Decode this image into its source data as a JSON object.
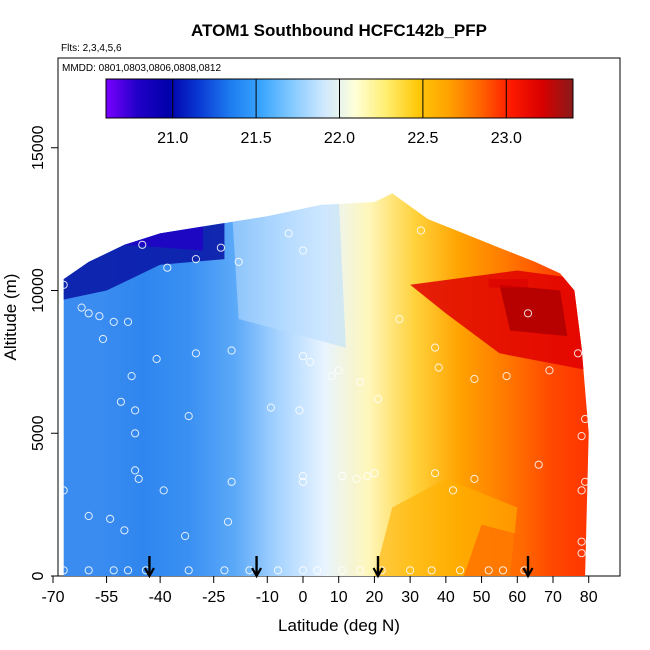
{
  "chart_data": {
    "type": "heatmap",
    "title": "ATOM1 Southbound HCFC142b_PFP",
    "flights_label": "Flts: 2,3,4,5,6",
    "dates_label": "MMDD: 0801,0803,0806,0808,0812",
    "xlabel": "Latitude (deg N)",
    "ylabel": "Altitude (m)",
    "xlim": [
      -70,
      85
    ],
    "ylim": [
      0,
      18000
    ],
    "x_ticks": [
      -70,
      -55,
      -40,
      -25,
      -10,
      0,
      10,
      20,
      30,
      40,
      50,
      60,
      70,
      80
    ],
    "y_ticks": [
      0,
      5000,
      10000,
      15000
    ],
    "colorbar": {
      "range": [
        20.6,
        23.4
      ],
      "ticks": [
        21.0,
        21.5,
        22.0,
        22.5,
        23.0
      ],
      "tick_labels": [
        "21.0",
        "21.5",
        "22.0",
        "22.5",
        "23.0"
      ],
      "colors": [
        "#7a00ff",
        "#2200c8",
        "#0000aa",
        "#0a3ad4",
        "#1e7cf0",
        "#3aa6ff",
        "#86caff",
        "#cfe8ff",
        "#ffffd8",
        "#ffee70",
        "#ffc80a",
        "#ffa200",
        "#ff6600",
        "#ff1a00",
        "#d80000",
        "#8a1a1a"
      ]
    },
    "top_envelope": [
      {
        "lat": -67,
        "alt": 10400
      },
      {
        "lat": -60,
        "alt": 11000
      },
      {
        "lat": -50,
        "alt": 11600
      },
      {
        "lat": -40,
        "alt": 12000
      },
      {
        "lat": -25,
        "alt": 12300
      },
      {
        "lat": -10,
        "alt": 12600
      },
      {
        "lat": 5,
        "alt": 13000
      },
      {
        "lat": 20,
        "alt": 13100
      },
      {
        "lat": 25,
        "alt": 13400
      },
      {
        "lat": 35,
        "alt": 12500
      },
      {
        "lat": 45,
        "alt": 12000
      },
      {
        "lat": 55,
        "alt": 11500
      },
      {
        "lat": 65,
        "alt": 11000
      },
      {
        "lat": 72,
        "alt": 10600
      },
      {
        "lat": 76,
        "alt": 10000
      },
      {
        "lat": 78,
        "alt": 8000
      },
      {
        "lat": 80,
        "alt": 5000
      },
      {
        "lat": 79,
        "alt": 0
      }
    ],
    "samples": [
      {
        "lat": -67,
        "alt": 10200
      },
      {
        "lat": -62,
        "alt": 9400
      },
      {
        "lat": -60,
        "alt": 9200
      },
      {
        "lat": -57,
        "alt": 9100
      },
      {
        "lat": -53,
        "alt": 8900
      },
      {
        "lat": -49,
        "alt": 8900
      },
      {
        "lat": -56,
        "alt": 8300
      },
      {
        "lat": -41,
        "alt": 7600
      },
      {
        "lat": -30,
        "alt": 7800
      },
      {
        "lat": -20,
        "alt": 7900
      },
      {
        "lat": -48,
        "alt": 7000
      },
      {
        "lat": -51,
        "alt": 6100
      },
      {
        "lat": -47,
        "alt": 5800
      },
      {
        "lat": -47,
        "alt": 5000
      },
      {
        "lat": -32,
        "alt": 5600
      },
      {
        "lat": -9,
        "alt": 5900
      },
      {
        "lat": -1,
        "alt": 5800
      },
      {
        "lat": 0,
        "alt": 7700
      },
      {
        "lat": 2,
        "alt": 7500
      },
      {
        "lat": 8,
        "alt": 7000
      },
      {
        "lat": 10,
        "alt": 7200
      },
      {
        "lat": 16,
        "alt": 6800
      },
      {
        "lat": 21,
        "alt": 6200
      },
      {
        "lat": 27,
        "alt": 9000
      },
      {
        "lat": 37,
        "alt": 8000
      },
      {
        "lat": 38,
        "alt": 7300
      },
      {
        "lat": 48,
        "alt": 6900
      },
      {
        "lat": 57,
        "alt": 7000
      },
      {
        "lat": 63,
        "alt": 9200
      },
      {
        "lat": 69,
        "alt": 7200
      },
      {
        "lat": 77,
        "alt": 7800
      },
      {
        "lat": -45,
        "alt": 11600
      },
      {
        "lat": -38,
        "alt": 10800
      },
      {
        "lat": -30,
        "alt": 11100
      },
      {
        "lat": -23,
        "alt": 11500
      },
      {
        "lat": -18,
        "alt": 11000
      },
      {
        "lat": -4,
        "alt": 12000
      },
      {
        "lat": 0,
        "alt": 11400
      },
      {
        "lat": 33,
        "alt": 12100
      },
      {
        "lat": -67,
        "alt": 3000
      },
      {
        "lat": -47,
        "alt": 3700
      },
      {
        "lat": -46,
        "alt": 3400
      },
      {
        "lat": -39,
        "alt": 3000
      },
      {
        "lat": -20,
        "alt": 3300
      },
      {
        "lat": 0,
        "alt": 3500
      },
      {
        "lat": 0,
        "alt": 3300
      },
      {
        "lat": 11,
        "alt": 3500
      },
      {
        "lat": 15,
        "alt": 3400
      },
      {
        "lat": 18,
        "alt": 3500
      },
      {
        "lat": 20,
        "alt": 3600
      },
      {
        "lat": 37,
        "alt": 3600
      },
      {
        "lat": 42,
        "alt": 3000
      },
      {
        "lat": 48,
        "alt": 3400
      },
      {
        "lat": 66,
        "alt": 3900
      },
      {
        "lat": 78,
        "alt": 4900
      },
      {
        "lat": 79,
        "alt": 5500
      },
      {
        "lat": 79,
        "alt": 3300
      },
      {
        "lat": 78,
        "alt": 3000
      },
      {
        "lat": -60,
        "alt": 2100
      },
      {
        "lat": -54,
        "alt": 2000
      },
      {
        "lat": -50,
        "alt": 1600
      },
      {
        "lat": -33,
        "alt": 1400
      },
      {
        "lat": -21,
        "alt": 1900
      },
      {
        "lat": 78,
        "alt": 1200
      },
      {
        "lat": 78,
        "alt": 800
      },
      {
        "lat": -67,
        "alt": 200
      },
      {
        "lat": -60,
        "alt": 200
      },
      {
        "lat": -53,
        "alt": 200
      },
      {
        "lat": -49,
        "alt": 200
      },
      {
        "lat": -44,
        "alt": 200
      },
      {
        "lat": -32,
        "alt": 200
      },
      {
        "lat": -22,
        "alt": 200
      },
      {
        "lat": -15,
        "alt": 200
      },
      {
        "lat": -7,
        "alt": 200
      },
      {
        "lat": 0,
        "alt": 200
      },
      {
        "lat": 4,
        "alt": 200
      },
      {
        "lat": 11,
        "alt": 200
      },
      {
        "lat": 16,
        "alt": 200
      },
      {
        "lat": 22,
        "alt": 200
      },
      {
        "lat": 30,
        "alt": 200
      },
      {
        "lat": 36,
        "alt": 200
      },
      {
        "lat": 44,
        "alt": 200
      },
      {
        "lat": 52,
        "alt": 200
      },
      {
        "lat": 56,
        "alt": 200
      },
      {
        "lat": 62,
        "alt": 200
      }
    ],
    "arrows_lat": [
      -43,
      -13,
      21,
      63
    ]
  }
}
